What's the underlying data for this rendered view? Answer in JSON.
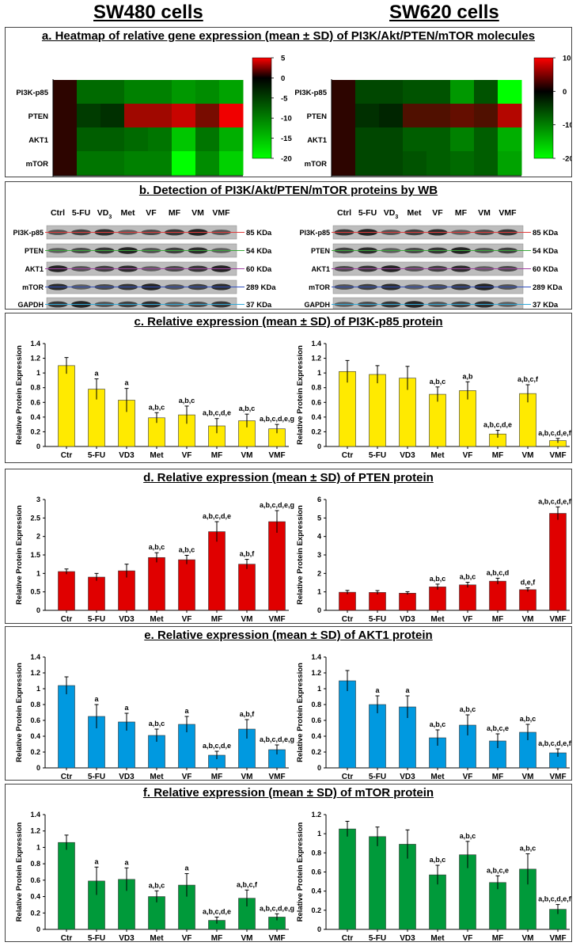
{
  "header": {
    "left": "SW480 cells",
    "right": "SW620 cells"
  },
  "panels": {
    "a": "a. Heatmap of relative gene expression (mean ± SD) of PI3K/Akt/PTEN/mTOR molecules",
    "b": "b. Detection of PI3K/Akt/PTEN/mTOR proteins by WB",
    "c": "c. Relative expression (mean ± SD) of PI3K-p85 protein",
    "d": "d. Relative expression (mean ± SD) of PTEN protein",
    "e": "e. Relative expression (mean ± SD) of AKT1 protein",
    "f": "f. Relative expression (mean ± SD) of mTOR protein"
  },
  "heatmap": {
    "genes": [
      "PI3K-p85",
      "PTEN",
      "AKT1",
      "mTOR"
    ],
    "groups": [
      "Ctr",
      "5-FU",
      "VD3",
      "Met",
      "VF",
      "MF",
      "VM",
      "VMF"
    ],
    "sw480": {
      "ticks": [
        "5",
        "0",
        "-5",
        "-10",
        "-15",
        "-20"
      ],
      "values": [
        [
          0,
          -7,
          -7,
          -9,
          -9,
          -11,
          -10,
          -12
        ],
        [
          0,
          -3,
          -2,
          3,
          3,
          4,
          2,
          5
        ],
        [
          0,
          -6,
          -6,
          -7,
          -8,
          -15,
          -8,
          -13
        ],
        [
          0,
          -8,
          -8,
          -9,
          -9,
          -20,
          -10,
          -16
        ]
      ]
    },
    "sw620": {
      "ticks": [
        "10",
        "0",
        "-10",
        "-20"
      ],
      "values": [
        [
          0,
          -4,
          -4,
          -5,
          -5,
          -11,
          -5,
          -20
        ],
        [
          0,
          -2,
          -1,
          2,
          2,
          3,
          2,
          7
        ],
        [
          0,
          -4,
          -4,
          -6,
          -6,
          -9,
          -6,
          -13
        ],
        [
          0,
          -4,
          -4,
          -5,
          -6,
          -7,
          -6,
          -12
        ]
      ]
    }
  },
  "wb": {
    "lanes": [
      "Ctrl",
      "5-FU",
      "VD",
      "Met",
      "VF",
      "MF",
      "VM",
      "VMF"
    ],
    "vd_sub": "3",
    "rows": [
      "PI3K-p85",
      "PTEN",
      "AKT1",
      "mTOR",
      "GAPDH"
    ],
    "sizes": [
      "85 KDa",
      "54 KDa",
      "60 KDa",
      "289 KDa",
      "37 KDa"
    ],
    "line_colors": [
      "#e03c3c",
      "#3aa83a",
      "#a040a0",
      "#3050c0",
      "#30a8d8"
    ]
  },
  "ylabel": "Relative Protein Expression",
  "chart_data": [
    {
      "type": "bar",
      "panel": "c",
      "cell": "SW480",
      "protein": "PI3K-p85",
      "color": "#ffea00",
      "categories": [
        "Ctr",
        "5-FU",
        "VD3",
        "Met",
        "VF",
        "MF",
        "VM",
        "VMF"
      ],
      "values": [
        1.1,
        0.78,
        0.63,
        0.39,
        0.43,
        0.28,
        0.35,
        0.24
      ],
      "errors": [
        0.11,
        0.14,
        0.16,
        0.07,
        0.12,
        0.1,
        0.09,
        0.06
      ],
      "labels": [
        "",
        "a",
        "a",
        "a,b,c",
        "a,b,c",
        "a,b,c,d,e",
        "a,b,c",
        "a,b,c,d,e,g"
      ],
      "ylim": [
        0,
        1.4
      ],
      "yticks": [
        "0",
        "0.2",
        "0.4",
        "0.6",
        "0.8",
        "1",
        "1.2",
        "1.4"
      ]
    },
    {
      "type": "bar",
      "panel": "c",
      "cell": "SW620",
      "protein": "PI3K-p85",
      "color": "#ffea00",
      "categories": [
        "Ctr",
        "5-FU",
        "VD3",
        "Met",
        "VF",
        "MF",
        "VM",
        "VMF"
      ],
      "values": [
        1.02,
        0.98,
        0.93,
        0.71,
        0.76,
        0.17,
        0.72,
        0.08
      ],
      "errors": [
        0.15,
        0.12,
        0.16,
        0.1,
        0.12,
        0.05,
        0.12,
        0.03
      ],
      "labels": [
        "",
        "",
        "",
        "a,b,c",
        "a,b",
        "a,b,c,d,e",
        "a,b,c,f",
        "a,b,c,d,e,f,g"
      ],
      "ylim": [
        0,
        1.4
      ],
      "yticks": [
        "0",
        "0.2",
        "0.4",
        "0.6",
        "0.8",
        "1",
        "1.2",
        "1.4"
      ]
    },
    {
      "type": "bar",
      "panel": "d",
      "cell": "SW480",
      "protein": "PTEN",
      "color": "#e00000",
      "categories": [
        "Ctr",
        "5-FU",
        "VD3",
        "Met",
        "VF",
        "MF",
        "VM",
        "VMF"
      ],
      "values": [
        1.05,
        0.9,
        1.07,
        1.43,
        1.37,
        2.13,
        1.25,
        2.4
      ],
      "errors": [
        0.07,
        0.1,
        0.18,
        0.13,
        0.12,
        0.27,
        0.13,
        0.3
      ],
      "labels": [
        "",
        "",
        "",
        "a,b,c",
        "a,b,c",
        "a,b,c,d,e",
        "a,b,f",
        "a,b,c,d,e,g"
      ],
      "ylim": [
        0,
        3
      ],
      "yticks": [
        "0",
        "0.5",
        "1",
        "1.5",
        "2",
        "2.5",
        "3"
      ]
    },
    {
      "type": "bar",
      "panel": "d",
      "cell": "SW620",
      "protein": "PTEN",
      "color": "#e00000",
      "categories": [
        "Ctr",
        "5-FU",
        "VD3",
        "Met",
        "VF",
        "MF",
        "VM",
        "VMF"
      ],
      "values": [
        0.98,
        0.97,
        0.93,
        1.27,
        1.38,
        1.58,
        1.12,
        5.25
      ],
      "errors": [
        0.1,
        0.1,
        0.08,
        0.15,
        0.14,
        0.16,
        0.1,
        0.35
      ],
      "labels": [
        "",
        "",
        "",
        "a,b,c",
        "a,b,c",
        "a,b,c,d",
        "d,e,f",
        "a,b,c,d,e,f,g"
      ],
      "ylim": [
        0,
        6
      ],
      "yticks": [
        "0",
        "1",
        "2",
        "3",
        "4",
        "5",
        "6"
      ]
    },
    {
      "type": "bar",
      "panel": "e",
      "cell": "SW480",
      "protein": "AKT1",
      "color": "#0099e0",
      "categories": [
        "Ctr",
        "5-FU",
        "VD3",
        "Met",
        "VF",
        "MF",
        "VM",
        "VMF"
      ],
      "values": [
        1.04,
        0.65,
        0.58,
        0.41,
        0.55,
        0.16,
        0.49,
        0.23
      ],
      "errors": [
        0.11,
        0.15,
        0.11,
        0.08,
        0.1,
        0.05,
        0.12,
        0.06
      ],
      "labels": [
        "",
        "a",
        "a",
        "a,b,c",
        "a",
        "a,b,c,d,e",
        "a,b,f",
        "a,b,c,d,e,g"
      ],
      "ylim": [
        0,
        1.4
      ],
      "yticks": [
        "0",
        "0.2",
        "0.4",
        "0.6",
        "0.8",
        "1",
        "1.2",
        "1.4"
      ]
    },
    {
      "type": "bar",
      "panel": "e",
      "cell": "SW620",
      "protein": "AKT1",
      "color": "#0099e0",
      "categories": [
        "Ctr",
        "5-FU",
        "VD3",
        "Met",
        "VF",
        "MF",
        "VM",
        "VMF"
      ],
      "values": [
        1.1,
        0.8,
        0.77,
        0.38,
        0.54,
        0.34,
        0.45,
        0.19
      ],
      "errors": [
        0.13,
        0.11,
        0.14,
        0.1,
        0.13,
        0.09,
        0.1,
        0.05
      ],
      "labels": [
        "",
        "a",
        "a",
        "a,b,c",
        "a,b,c",
        "a,b,c,e",
        "a,b,c",
        "a,b,c,d,e,f,g"
      ],
      "ylim": [
        0,
        1.4
      ],
      "yticks": [
        "0",
        "0.2",
        "0.4",
        "0.6",
        "0.8",
        "1",
        "1.2",
        "1.4"
      ]
    },
    {
      "type": "bar",
      "panel": "f",
      "cell": "SW480",
      "protein": "mTOR",
      "color": "#009a3a",
      "categories": [
        "Ctr",
        "5-FU",
        "VD3",
        "Met",
        "VF",
        "MF",
        "VM",
        "VMF"
      ],
      "values": [
        1.06,
        0.59,
        0.61,
        0.4,
        0.54,
        0.11,
        0.38,
        0.15
      ],
      "errors": [
        0.09,
        0.17,
        0.14,
        0.07,
        0.14,
        0.04,
        0.1,
        0.04
      ],
      "labels": [
        "",
        "a",
        "a",
        "a,b,c",
        "a",
        "a,b,c,d,e",
        "a,b,c,f",
        "a,b,c,d,e,g"
      ],
      "ylim": [
        0,
        1.4
      ],
      "yticks": [
        "0",
        "0.2",
        "0.4",
        "0.6",
        "0.8",
        "1",
        "1.2",
        "1.4"
      ]
    },
    {
      "type": "bar",
      "panel": "f",
      "cell": "SW620",
      "protein": "mTOR",
      "color": "#009a3a",
      "categories": [
        "Ctr",
        "5-FU",
        "VD3",
        "Met",
        "VF",
        "MF",
        "VM",
        "VMF"
      ],
      "values": [
        1.05,
        0.97,
        0.89,
        0.57,
        0.78,
        0.49,
        0.63,
        0.21
      ],
      "errors": [
        0.08,
        0.1,
        0.15,
        0.1,
        0.14,
        0.07,
        0.16,
        0.05
      ],
      "labels": [
        "",
        "",
        "",
        "a,b,c",
        "a,b,c",
        "a,b,c,e",
        "a,b,c",
        "a,b,c,d,e,f,g"
      ],
      "ylim": [
        0,
        1.2
      ],
      "yticks": [
        "0",
        "0.2",
        "0.4",
        "0.6",
        "0.8",
        "1",
        "1.2"
      ]
    }
  ]
}
